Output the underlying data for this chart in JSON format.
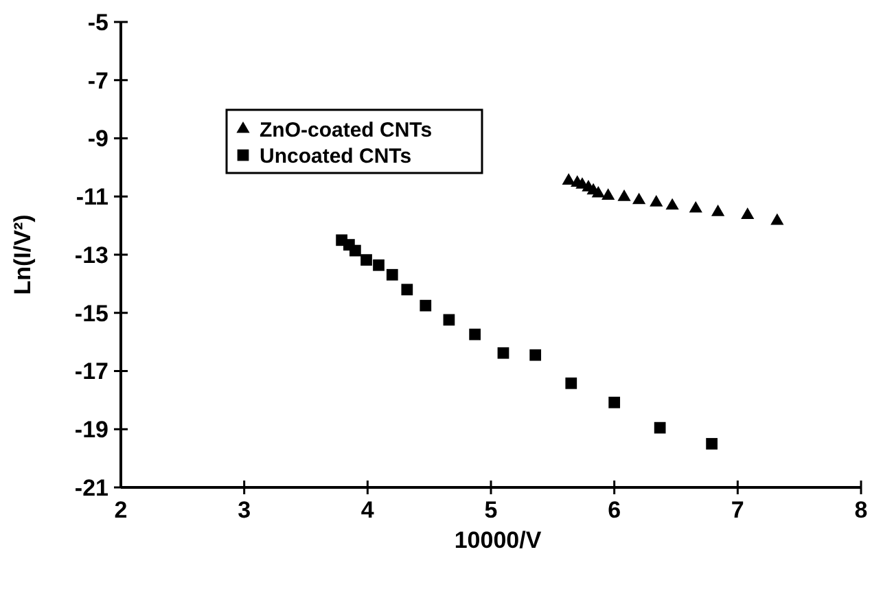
{
  "chart_data": {
    "type": "scatter",
    "xlabel": "10000/V",
    "ylabel": "Ln(I/V²)",
    "xlim": [
      2,
      8
    ],
    "xticks": [
      2,
      3,
      4,
      5,
      6,
      7,
      8
    ],
    "ylim": [
      -21,
      -5
    ],
    "yticks": [
      -21,
      -19,
      -17,
      -15,
      -13,
      -11,
      -9,
      -7,
      -5
    ],
    "grid": false,
    "legend": "top left",
    "series": [
      {
        "name": "ZnO-coated CNTs",
        "color": "#000000",
        "marker": "triangle",
        "x": [
          5.63,
          5.7,
          5.74,
          5.79,
          5.83,
          5.87,
          5.95,
          6.08,
          6.2,
          6.34,
          6.47,
          6.66,
          6.84,
          7.08,
          7.32
        ],
        "values": [
          -10.46,
          -10.53,
          -10.6,
          -10.69,
          -10.8,
          -10.9,
          -10.98,
          -11.02,
          -11.13,
          -11.21,
          -11.32,
          -11.42,
          -11.54,
          -11.64,
          -11.84
        ]
      },
      {
        "name": "Uncoated CNTs",
        "color": "#000000",
        "marker": "square",
        "x": [
          3.79,
          3.85,
          3.9,
          3.99,
          4.09,
          4.2,
          4.32,
          4.47,
          4.66,
          4.87,
          5.1,
          5.36,
          5.65,
          6.0,
          6.37,
          6.79
        ],
        "values": [
          -12.5,
          -12.66,
          -12.86,
          -13.18,
          -13.36,
          -13.69,
          -14.2,
          -14.75,
          -15.24,
          -15.74,
          -16.38,
          -16.45,
          -17.42,
          -18.08,
          -18.95,
          -19.5
        ]
      }
    ]
  }
}
